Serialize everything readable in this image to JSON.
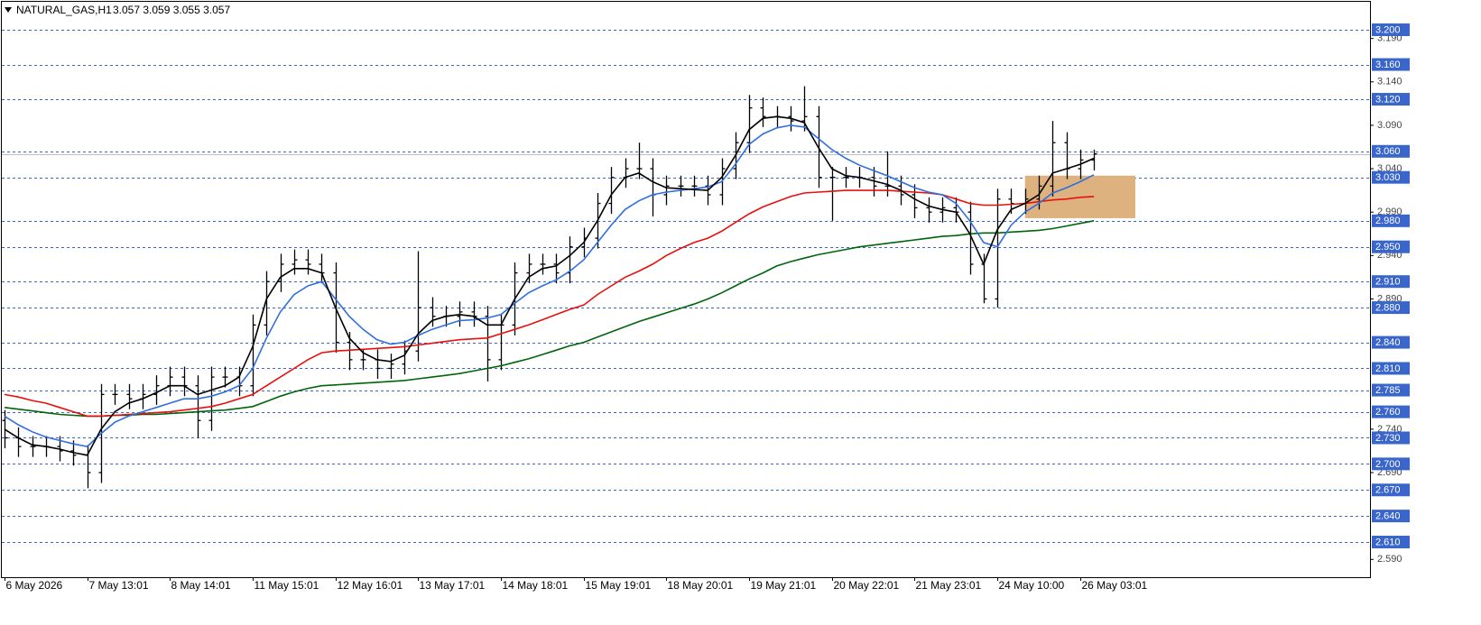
{
  "chart_data": {
    "type": "candlestick",
    "title": "NATURAL_GAS,H1",
    "subtitle": "3.057 3.059 3.055 3.057",
    "categories": [
      "6 May 2026",
      null,
      null,
      null,
      null,
      null,
      "7 May 13:01",
      null,
      null,
      null,
      null,
      null,
      "8 May 14:01",
      null,
      null,
      null,
      null,
      null,
      "11 May 15:01",
      null,
      null,
      null,
      null,
      null,
      "12 May 16:01",
      null,
      null,
      null,
      null,
      null,
      "13 May 17:01",
      null,
      null,
      null,
      null,
      null,
      "14 May 18:01",
      null,
      null,
      null,
      null,
      null,
      "15 May 19:01",
      null,
      null,
      null,
      null,
      null,
      "18 May 20:01",
      null,
      null,
      null,
      null,
      null,
      "19 May 21:01",
      null,
      null,
      null,
      null,
      null,
      "20 May 22:01",
      null,
      null,
      null,
      null,
      null,
      "21 May 23:01",
      null,
      null,
      null,
      null,
      null,
      "24 May 10:00",
      null,
      null,
      null,
      null,
      null,
      "26 May 03:01",
      null
    ],
    "open": [
      2.75,
      2.73,
      2.72,
      2.72,
      2.72,
      2.715,
      2.71,
      2.69,
      2.78,
      2.78,
      2.775,
      2.78,
      2.79,
      2.8,
      2.79,
      2.75,
      2.8,
      2.8,
      2.79,
      2.86,
      2.91,
      2.93,
      2.935,
      2.93,
      2.92,
      2.84,
      2.82,
      2.82,
      2.81,
      2.815,
      2.83,
      2.88,
      2.87,
      2.87,
      2.875,
      2.87,
      2.82,
      2.86,
      2.92,
      2.93,
      2.93,
      2.92,
      2.95,
      2.96,
      3.0,
      3.03,
      3.04,
      3.04,
      3.01,
      3.02,
      3.02,
      3.02,
      3.01,
      3.04,
      3.07,
      3.11,
      3.1,
      3.1,
      3.095,
      3.1,
      3.03,
      3.03,
      3.03,
      3.03,
      3.02,
      3.02,
      3.01,
      2.995,
      2.99,
      2.995,
      2.99,
      2.93,
      2.89,
      3.005,
      3.0,
      3.005,
      3.02,
      3.07,
      3.04,
      3.05
    ],
    "high": [
      2.762,
      2.742,
      2.732,
      2.732,
      2.732,
      2.727,
      2.722,
      2.792,
      2.792,
      2.792,
      2.792,
      2.802,
      2.812,
      2.812,
      2.802,
      2.812,
      2.812,
      2.812,
      2.872,
      2.922,
      2.942,
      2.947,
      2.947,
      2.942,
      2.932,
      2.852,
      2.832,
      2.832,
      2.827,
      2.842,
      2.945,
      2.892,
      2.882,
      2.887,
      2.887,
      2.882,
      2.872,
      2.932,
      2.942,
      2.942,
      2.942,
      2.962,
      2.972,
      3.012,
      3.042,
      3.052,
      3.07,
      3.052,
      3.032,
      3.032,
      3.032,
      3.032,
      3.052,
      3.082,
      3.125,
      3.122,
      3.112,
      3.112,
      3.135,
      3.112,
      3.042,
      3.042,
      3.042,
      3.042,
      3.06,
      3.032,
      3.022,
      3.007,
      3.007,
      3.007,
      3.002,
      2.942,
      3.017,
      3.017,
      3.017,
      3.032,
      3.095,
      3.082,
      3.062,
      3.062
    ],
    "low": [
      2.718,
      2.708,
      2.708,
      2.708,
      2.703,
      2.698,
      2.672,
      2.678,
      2.768,
      2.763,
      2.763,
      2.768,
      2.778,
      2.778,
      2.73,
      2.738,
      2.788,
      2.778,
      2.778,
      2.848,
      2.898,
      2.918,
      2.918,
      2.908,
      2.828,
      2.808,
      2.808,
      2.798,
      2.798,
      2.803,
      2.818,
      2.858,
      2.858,
      2.858,
      2.858,
      2.795,
      2.808,
      2.848,
      2.908,
      2.918,
      2.908,
      2.908,
      2.938,
      2.948,
      2.988,
      3.018,
      3.028,
      2.985,
      2.998,
      3.008,
      3.008,
      2.998,
      2.998,
      3.028,
      3.058,
      3.088,
      3.088,
      3.083,
      3.083,
      3.018,
      2.98,
      3.018,
      3.018,
      3.008,
      3.008,
      2.998,
      2.983,
      2.978,
      2.978,
      2.978,
      2.918,
      2.885,
      2.88,
      2.988,
      2.988,
      2.993,
      3.008,
      3.028,
      3.028,
      3.038
    ],
    "close": [
      2.73,
      2.72,
      2.72,
      2.72,
      2.715,
      2.71,
      2.69,
      2.78,
      2.78,
      2.775,
      2.78,
      2.79,
      2.8,
      2.79,
      2.75,
      2.8,
      2.8,
      2.79,
      2.86,
      2.91,
      2.93,
      2.935,
      2.93,
      2.92,
      2.84,
      2.82,
      2.82,
      2.81,
      2.815,
      2.83,
      2.88,
      2.87,
      2.87,
      2.875,
      2.87,
      2.82,
      2.86,
      2.92,
      2.93,
      2.93,
      2.92,
      2.95,
      2.96,
      3.0,
      3.03,
      3.04,
      3.04,
      3.01,
      3.02,
      3.02,
      3.02,
      3.01,
      3.04,
      3.07,
      3.11,
      3.1,
      3.1,
      3.095,
      3.1,
      3.03,
      3.03,
      3.03,
      3.03,
      3.02,
      3.02,
      3.01,
      2.995,
      2.99,
      2.995,
      2.99,
      2.93,
      2.89,
      3.005,
      3.0,
      3.005,
      3.02,
      3.07,
      3.04,
      3.05,
      3.057
    ],
    "candle_color": "#000000",
    "lines": [
      {
        "color": "#00640a",
        "values": [
          2.765,
          2.763,
          2.761,
          2.759,
          2.757,
          2.756,
          2.755,
          2.755,
          2.756,
          2.756,
          2.757,
          2.757,
          2.758,
          2.759,
          2.76,
          2.761,
          2.762,
          2.764,
          2.766,
          2.772,
          2.778,
          2.783,
          2.787,
          2.79,
          2.791,
          2.792,
          2.793,
          2.794,
          2.795,
          2.796,
          2.798,
          2.8,
          2.802,
          2.804,
          2.807,
          2.81,
          2.813,
          2.817,
          2.821,
          2.826,
          2.831,
          2.836,
          2.84,
          2.846,
          2.852,
          2.858,
          2.864,
          2.869,
          2.874,
          2.879,
          2.884,
          2.89,
          2.897,
          2.905,
          2.913,
          2.92,
          2.928,
          2.933,
          2.937,
          2.941,
          2.944,
          2.947,
          2.95,
          2.952,
          2.954,
          2.956,
          2.958,
          2.96,
          2.962,
          2.963,
          2.965,
          2.966,
          2.966,
          2.967,
          2.968,
          2.969,
          2.971,
          2.974,
          2.977,
          2.98
        ]
      },
      {
        "color": "#e8100c",
        "values": [
          2.78,
          2.777,
          2.773,
          2.77,
          2.765,
          2.76,
          2.755,
          2.755,
          2.756,
          2.757,
          2.758,
          2.759,
          2.76,
          2.762,
          2.764,
          2.766,
          2.77,
          2.775,
          2.78,
          2.79,
          2.8,
          2.81,
          2.82,
          2.828,
          2.83,
          2.831,
          2.832,
          2.833,
          2.834,
          2.835,
          2.837,
          2.839,
          2.841,
          2.843,
          2.844,
          2.845,
          2.85,
          2.855,
          2.86,
          2.866,
          2.872,
          2.878,
          2.883,
          2.895,
          2.905,
          2.915,
          2.922,
          2.93,
          2.94,
          2.948,
          2.955,
          2.96,
          2.968,
          2.978,
          2.988,
          2.996,
          3.002,
          3.008,
          3.012,
          3.013,
          3.014,
          3.015,
          3.015,
          3.015,
          3.015,
          3.014,
          3.013,
          3.012,
          3.01,
          3.005,
          3.0,
          2.998,
          2.998,
          2.999,
          3.0,
          3.002,
          3.004,
          3.005,
          3.007,
          3.008
        ]
      },
      {
        "color": "#2f6fe0",
        "values": [
          2.755,
          2.745,
          2.737,
          2.731,
          2.727,
          2.723,
          2.72,
          2.735,
          2.748,
          2.755,
          2.76,
          2.765,
          2.77,
          2.775,
          2.775,
          2.778,
          2.783,
          2.79,
          2.81,
          2.845,
          2.875,
          2.895,
          2.905,
          2.91,
          2.89,
          2.87,
          2.855,
          2.843,
          2.838,
          2.84,
          2.848,
          2.855,
          2.86,
          2.865,
          2.866,
          2.868,
          2.872,
          2.885,
          2.897,
          2.905,
          2.912,
          2.922,
          2.935,
          2.955,
          2.975,
          2.993,
          3.003,
          3.01,
          3.013,
          3.015,
          3.017,
          3.019,
          3.025,
          3.045,
          3.068,
          3.08,
          3.087,
          3.09,
          3.088,
          3.075,
          3.062,
          3.052,
          3.044,
          3.038,
          3.032,
          3.025,
          3.018,
          3.013,
          3.01,
          3.0,
          2.98,
          2.955,
          2.95,
          2.975,
          2.99,
          3.0,
          3.012,
          3.018,
          3.025,
          3.033
        ]
      },
      {
        "color": "#000000",
        "values": [
          2.74,
          2.73,
          2.722,
          2.72,
          2.717,
          2.713,
          2.71,
          2.74,
          2.76,
          2.77,
          2.775,
          2.782,
          2.79,
          2.79,
          2.78,
          2.785,
          2.79,
          2.8,
          2.835,
          2.89,
          2.915,
          2.925,
          2.925,
          2.92,
          2.88,
          2.845,
          2.828,
          2.82,
          2.818,
          2.825,
          2.85,
          2.865,
          2.87,
          2.872,
          2.87,
          2.86,
          2.86,
          2.89,
          2.915,
          2.925,
          2.928,
          2.94,
          2.955,
          2.98,
          3.01,
          3.03,
          3.035,
          3.025,
          3.018,
          3.017,
          3.016,
          3.015,
          3.03,
          3.055,
          3.085,
          3.098,
          3.1,
          3.098,
          3.093,
          3.065,
          3.04,
          3.032,
          3.03,
          3.026,
          3.022,
          3.015,
          3.005,
          2.997,
          2.993,
          2.99,
          2.965,
          2.93,
          2.97,
          2.993,
          3.0,
          3.01,
          3.035,
          3.04,
          3.045,
          3.052
        ]
      }
    ],
    "rectangle": {
      "x": [
        74,
        82
      ],
      "y": [
        2.983,
        3.032
      ],
      "color": "#deb27e"
    },
    "price_line": 3.057,
    "price_line_color": "#c0c0c0",
    "level_color": "#3a66cc",
    "levels": [
      {
        "value": 3.2,
        "label": "3.200"
      },
      {
        "value": 3.16,
        "label": "3.160"
      },
      {
        "value": 3.12,
        "label": "3.120"
      },
      {
        "value": 3.06,
        "label": "3.060"
      },
      {
        "value": 3.03,
        "label": "3.030"
      },
      {
        "value": 2.98,
        "label": "2.980"
      },
      {
        "value": 2.95,
        "label": "2.950"
      },
      {
        "value": 2.91,
        "label": "2.910"
      },
      {
        "value": 2.88,
        "label": "2.880"
      },
      {
        "value": 2.84,
        "label": "2.840"
      },
      {
        "value": 2.81,
        "label": "2.810"
      },
      {
        "value": 2.785,
        "label": "2.785"
      },
      {
        "value": 2.76,
        "label": "2.760"
      },
      {
        "value": 2.73,
        "label": "2.730"
      },
      {
        "value": 2.7,
        "label": "2.700"
      },
      {
        "value": 2.67,
        "label": "2.670"
      },
      {
        "value": 2.64,
        "label": "2.640"
      },
      {
        "value": 2.61,
        "label": "2.610"
      }
    ],
    "ylim": [
      2.5695,
      3.2343
    ],
    "yticks": [
      {
        "value": 3.19,
        "label": "3.190"
      },
      {
        "value": 3.14,
        "label": "3.140"
      },
      {
        "value": 3.09,
        "label": "3.090"
      },
      {
        "value": 3.04,
        "label": "3.040"
      },
      {
        "value": 2.99,
        "label": "2.990"
      },
      {
        "value": 2.94,
        "label": "2.940"
      },
      {
        "value": 2.89,
        "label": "2.890"
      },
      {
        "value": 2.74,
        "label": "2.740"
      },
      {
        "value": 2.69,
        "label": "2.690"
      },
      {
        "value": 2.59,
        "label": "2.590"
      }
    ]
  }
}
